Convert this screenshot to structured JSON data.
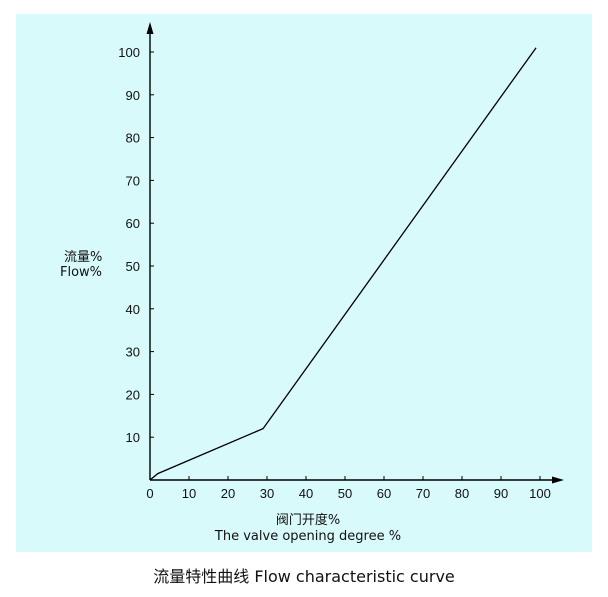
{
  "caption": "流量特性曲线 Flow characteristic curve",
  "chart_data": {
    "type": "line",
    "title": "",
    "ylabel_cn": "流量%",
    "ylabel_en": "Flow%",
    "xlabel_cn": "阀门开度%",
    "xlabel_en": "The valve opening degree %",
    "xlim": [
      0,
      100
    ],
    "ylim": [
      0,
      100
    ],
    "x_ticks": [
      0,
      10,
      20,
      30,
      40,
      50,
      60,
      70,
      80,
      90,
      100
    ],
    "y_ticks": [
      10,
      20,
      30,
      40,
      50,
      60,
      70,
      80,
      90,
      100
    ],
    "grid": false,
    "series": [
      {
        "x": [
          0,
          2,
          29,
          99
        ],
        "y": [
          0,
          1.5,
          12,
          101
        ]
      }
    ],
    "colors": {
      "line": "#000000",
      "background": "#d9fafa"
    }
  }
}
